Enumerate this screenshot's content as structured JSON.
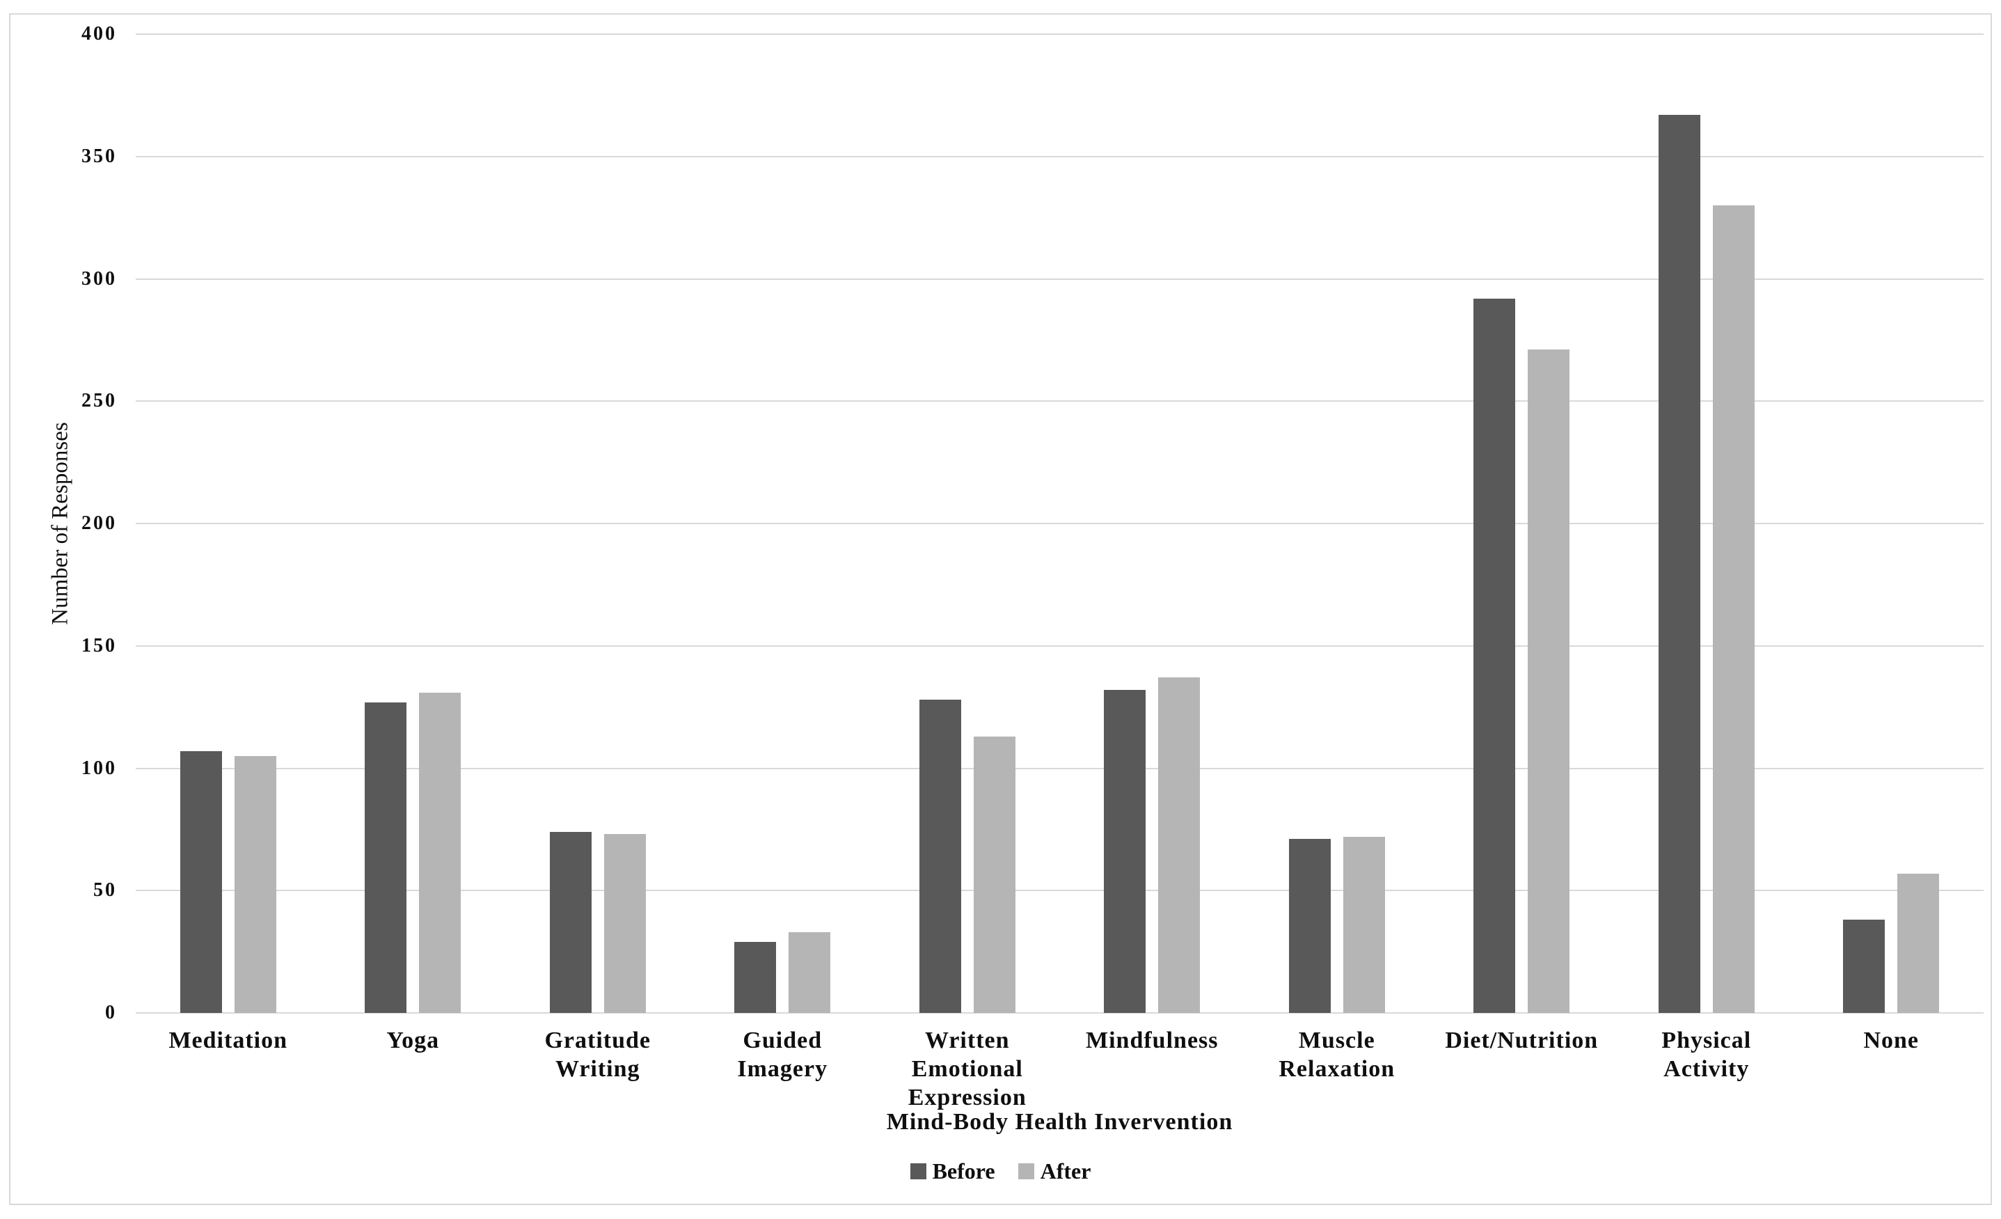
{
  "figure": {
    "y_axis_title": "Number of Responses",
    "x_axis_title": "Mind-Body Health Invervention"
  },
  "legend": {
    "position": "bottom-center",
    "items": [
      {
        "label": "Before",
        "color": "#595959"
      },
      {
        "label": "After",
        "color": "#b5b5b5"
      }
    ]
  },
  "colors": {
    "before_bar": "#595959",
    "after_bar": "#b5b5b5",
    "gridline": "#d9d9d9",
    "axis_line": "#d9d9d9",
    "figure_border": "#d9d9d9",
    "background": "#ffffff",
    "text": "#0f0f0f"
  },
  "chart_data": {
    "type": "bar",
    "title": "",
    "xlabel": "Mind-Body Health Invervention",
    "ylabel": "Number of Responses",
    "ylim": [
      0,
      400
    ],
    "yticks": [
      0,
      50,
      100,
      150,
      200,
      250,
      300,
      350,
      400
    ],
    "grid": "horizontal",
    "legend_position": "bottom-center",
    "categories": [
      "Meditation",
      "Yoga",
      "Gratitude\nWriting",
      "Guided\nImagery",
      "Written\nEmotional\nExpression",
      "Mindfulness",
      "Muscle\nRelaxation",
      "Diet/Nutrition",
      "Physical\nActivity",
      "None"
    ],
    "series": [
      {
        "name": "Before",
        "color": "#595959",
        "values": [
          107,
          127,
          74,
          29,
          128,
          132,
          71,
          292,
          367,
          38
        ]
      },
      {
        "name": "After",
        "color": "#b5b5b5",
        "values": [
          105,
          131,
          73,
          33,
          113,
          137,
          72,
          271,
          330,
          57
        ]
      }
    ]
  }
}
